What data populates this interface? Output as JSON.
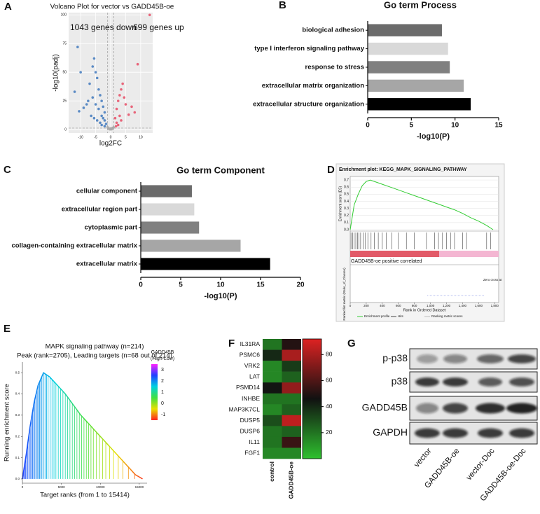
{
  "chart_data": [
    {
      "panel_label": "A",
      "type": "scatter",
      "title": "Volcano Plot for vector vs GADD45B-oe",
      "annotations": [
        "1043 genes down",
        "699 genes up"
      ],
      "x_label": "log2FC",
      "y_label": "-log10(padj)",
      "xlim": [
        -14,
        14
      ],
      "ylim": [
        -3,
        102
      ],
      "xticks": [
        -10,
        -5,
        0,
        5,
        10
      ],
      "yticks": [
        0,
        25,
        50,
        75,
        100
      ],
      "grid": true,
      "threshold_lines": {
        "x": [
          -1,
          1
        ],
        "y": [
          1.3
        ]
      },
      "series": [
        {
          "color": "#4a7fc0",
          "x": [
            -11,
            -10,
            -12,
            -9,
            -10.5,
            -7,
            -6,
            -5.5,
            -5,
            -4.5,
            -4,
            -3.5,
            -3,
            -2.5,
            -2,
            -6,
            -5,
            -4,
            -3,
            -2.5,
            -2,
            -1.5,
            -5.5,
            -4.5,
            -3.5,
            -7.5,
            -8,
            -6.5,
            -3,
            -2
          ],
          "y": [
            72,
            50,
            33,
            19,
            16,
            40,
            55,
            62,
            50,
            45,
            35,
            30,
            25,
            20,
            15,
            28,
            22,
            18,
            12,
            10,
            8,
            5,
            10,
            8,
            6,
            25,
            22,
            12,
            4,
            3
          ]
        },
        {
          "color": "#e8566e",
          "x": [
            13,
            9,
            7,
            8,
            4,
            3.5,
            3,
            2.5,
            2,
            1.5,
            4.5,
            5,
            3,
            2,
            6,
            2.5,
            3.5,
            1.8
          ],
          "y": [
            100,
            57,
            20,
            15,
            40,
            35,
            30,
            25,
            18,
            10,
            28,
            22,
            12,
            6,
            13,
            4,
            8,
            3
          ]
        },
        {
          "color": "#a8a8a8",
          "x": [
            -1,
            -0.5,
            0,
            0.5,
            1,
            -0.8,
            0.3,
            0.7,
            -0.2,
            0.1
          ],
          "y": [
            2,
            1,
            0.5,
            1,
            2,
            0.8,
            0.3,
            1.5,
            0.2,
            1.2
          ]
        }
      ]
    },
    {
      "panel_label": "B",
      "type": "hbar",
      "title": "Go term Process",
      "categories": [
        "biological adhesion",
        "type I interferon signaling pathway",
        "response to stress",
        "extracellular matrix organization",
        "extracellular structure organization"
      ],
      "values": [
        8.5,
        9.2,
        9.4,
        11,
        11.8
      ],
      "colors": [
        "#6b6b6b",
        "#d9d9d9",
        "#808080",
        "#a6a6a6",
        "#000000"
      ],
      "x_label": "-log10(P)",
      "xlim": [
        0,
        15
      ],
      "xticks": [
        0,
        5,
        10,
        15
      ]
    },
    {
      "panel_label": "C",
      "type": "hbar",
      "title": "Go term Component",
      "categories": [
        "cellular component",
        "extracellular region part",
        "cytoplasmic part",
        "collagen-containing extracellular matrix",
        "extracellular matrix"
      ],
      "values": [
        6.4,
        6.7,
        7.3,
        12.5,
        16.2
      ],
      "colors": [
        "#6b6b6b",
        "#d9d9d9",
        "#808080",
        "#a6a6a6",
        "#000000"
      ],
      "x_label": "-log10(P)",
      "xlim": [
        0,
        20
      ],
      "xticks": [
        0,
        5,
        10,
        15,
        20
      ]
    },
    {
      "panel_label": "D",
      "type": "gsea",
      "title": "Enrichment plot: KEGG_MAPK_SIGNALING_PATHWAY",
      "y_label": "Enrichment score (ES)",
      "y_label_bottom": "Ranked list metric (Ratio_of_Classes)",
      "x_label": "Rank in Ordered Dataset",
      "phenotype_label": "GADD45B-oe positive correlated",
      "zero_cross_label": "Zero cross at",
      "legend": [
        "Enrichment profile",
        "Hits",
        "Ranking metric scores"
      ],
      "line_color": "#33cc33",
      "x": [
        0,
        50,
        100,
        150,
        200,
        250,
        300,
        400,
        500,
        600,
        700,
        800,
        900,
        1000,
        1100,
        1200,
        1300,
        1400,
        1500,
        1600,
        1700,
        1780
      ],
      "values": [
        0,
        0.35,
        0.5,
        0.62,
        0.68,
        0.7,
        0.68,
        0.64,
        0.6,
        0.56,
        0.52,
        0.48,
        0.44,
        0.4,
        0.36,
        0.32,
        0.28,
        0.23,
        0.17,
        0.12,
        0.06,
        0.0
      ],
      "hits": [
        10,
        30,
        50,
        70,
        90,
        110,
        130,
        160,
        190,
        220,
        260,
        300,
        350,
        400,
        450,
        520,
        600,
        700,
        800,
        950,
        1050,
        1100,
        1150,
        1200,
        1250,
        1300,
        1400,
        1450,
        1700,
        1750
      ],
      "xlim": [
        0,
        1850
      ],
      "ylim": [
        -0.02,
        0.75
      ],
      "xticks": [
        0,
        200,
        400,
        600,
        800,
        {
          "value": 1000,
          "label": "1,000"
        },
        {
          "value": 1200,
          "label": "1,200"
        },
        {
          "value": 1400,
          "label": "1,400"
        },
        {
          "value": 1600,
          "label": "1,600"
        },
        {
          "value": 1800,
          "label": "1,800"
        }
      ],
      "yticks": [
        {
          "value": 0,
          "label": "0.0"
        },
        {
          "value": 0.1,
          "label": "0.1"
        },
        {
          "value": 0.2,
          "label": "0.2"
        },
        {
          "value": 0.3,
          "label": "0.3"
        },
        {
          "value": 0.4,
          "label": "0.4"
        },
        {
          "value": 0.5,
          "label": "0.5"
        },
        {
          "value": 0.6,
          "label": "0.6"
        },
        {
          "value": 0.7,
          "label": "0.7"
        }
      ]
    },
    {
      "panel_label": "E",
      "type": "gsea_running",
      "title": "MAPK signaling pathway (n=214)",
      "subtitle": "Peak (rank=2705), Leading targets (n=68 out of 214)",
      "x_label": "Target ranks (from 1 to 15414)",
      "y_label": "Running enrichment score",
      "x": [
        1,
        500,
        1000,
        1500,
        2000,
        2705,
        3500,
        4500,
        5500,
        6500,
        7500,
        8500,
        9500,
        10500,
        11500,
        12500,
        13500,
        14500,
        15414
      ],
      "values": [
        0,
        0.12,
        0.25,
        0.36,
        0.44,
        0.5,
        0.48,
        0.44,
        0.4,
        0.35,
        0.3,
        0.26,
        0.22,
        0.18,
        0.14,
        0.1,
        0.06,
        0.02,
        0
      ],
      "hits": [
        60,
        180,
        300,
        420,
        560,
        700,
        850,
        1000,
        1150,
        1300,
        1450,
        1600,
        1750,
        1900,
        2050,
        2200,
        2350,
        2500,
        2705,
        2900,
        3100,
        3300,
        3550,
        3800,
        4050,
        4300,
        4600,
        4900,
        5200,
        5500,
        5800,
        6100,
        6400,
        6700,
        7000,
        7300,
        7600,
        7900,
        8200,
        8500,
        8800,
        9100,
        9500,
        9900,
        10300,
        10700,
        11200,
        11700,
        12300,
        12900,
        13600,
        14400,
        15300
      ],
      "xlim": [
        0,
        16000
      ],
      "ylim": [
        -0.02,
        0.55
      ],
      "xticks": [
        0,
        5000,
        10000,
        15000
      ],
      "yticks": [
        {
          "value": 0,
          "label": "0.0"
        },
        {
          "value": 0.1,
          "label": "0.1"
        },
        {
          "value": 0.2,
          "label": "0.2"
        },
        {
          "value": 0.3,
          "label": "0.3"
        },
        {
          "value": 0.4,
          "label": "0.4"
        },
        {
          "value": 0.5,
          "label": "0.5"
        }
      ],
      "colorbar_title": [
        "GADD45B",
        "(High-Low)"
      ],
      "colorbar_lim": [
        -1.5,
        3.5
      ],
      "colorbar_ticks": [
        3,
        2,
        1,
        0,
        -1
      ],
      "colorbar_colors": [
        "#ff2020",
        "#e8e000",
        "#40e040",
        "#00d0e0",
        "#2040ff",
        "#ff20ff"
      ]
    },
    {
      "panel_label": "F",
      "type": "heatmap",
      "rows": [
        "IL31RA",
        "PSMC6",
        "VRK2",
        "LAT",
        "PSMD14",
        "INHBE",
        "MAP3K7CL",
        "DUSP5",
        "DUSP6",
        "IL11",
        "FGF1"
      ],
      "columns": [
        "control",
        "GADD45B-oe"
      ],
      "values": [
        [
          20,
          50
        ],
        [
          40,
          80
        ],
        [
          15,
          35
        ],
        [
          15,
          25
        ],
        [
          45,
          75
        ],
        [
          20,
          20
        ],
        [
          15,
          25
        ],
        [
          30,
          85
        ],
        [
          20,
          25
        ],
        [
          20,
          55
        ],
        [
          15,
          15
        ]
      ],
      "colorbar_lim": [
        0,
        92
      ],
      "colorbar_ticks": [
        20,
        40,
        60,
        80
      ],
      "colorscale": [
        "#2ec02e",
        "#111111",
        "#dd2222"
      ]
    }
  ],
  "blot": {
    "panel_label": "G",
    "rows": [
      "p-p38",
      "p38",
      "GADD45B",
      "GAPDH"
    ],
    "lanes": [
      "vector",
      "GADD45B-oe",
      "vector-Doc",
      "GADD45B-oe-Doc"
    ]
  }
}
